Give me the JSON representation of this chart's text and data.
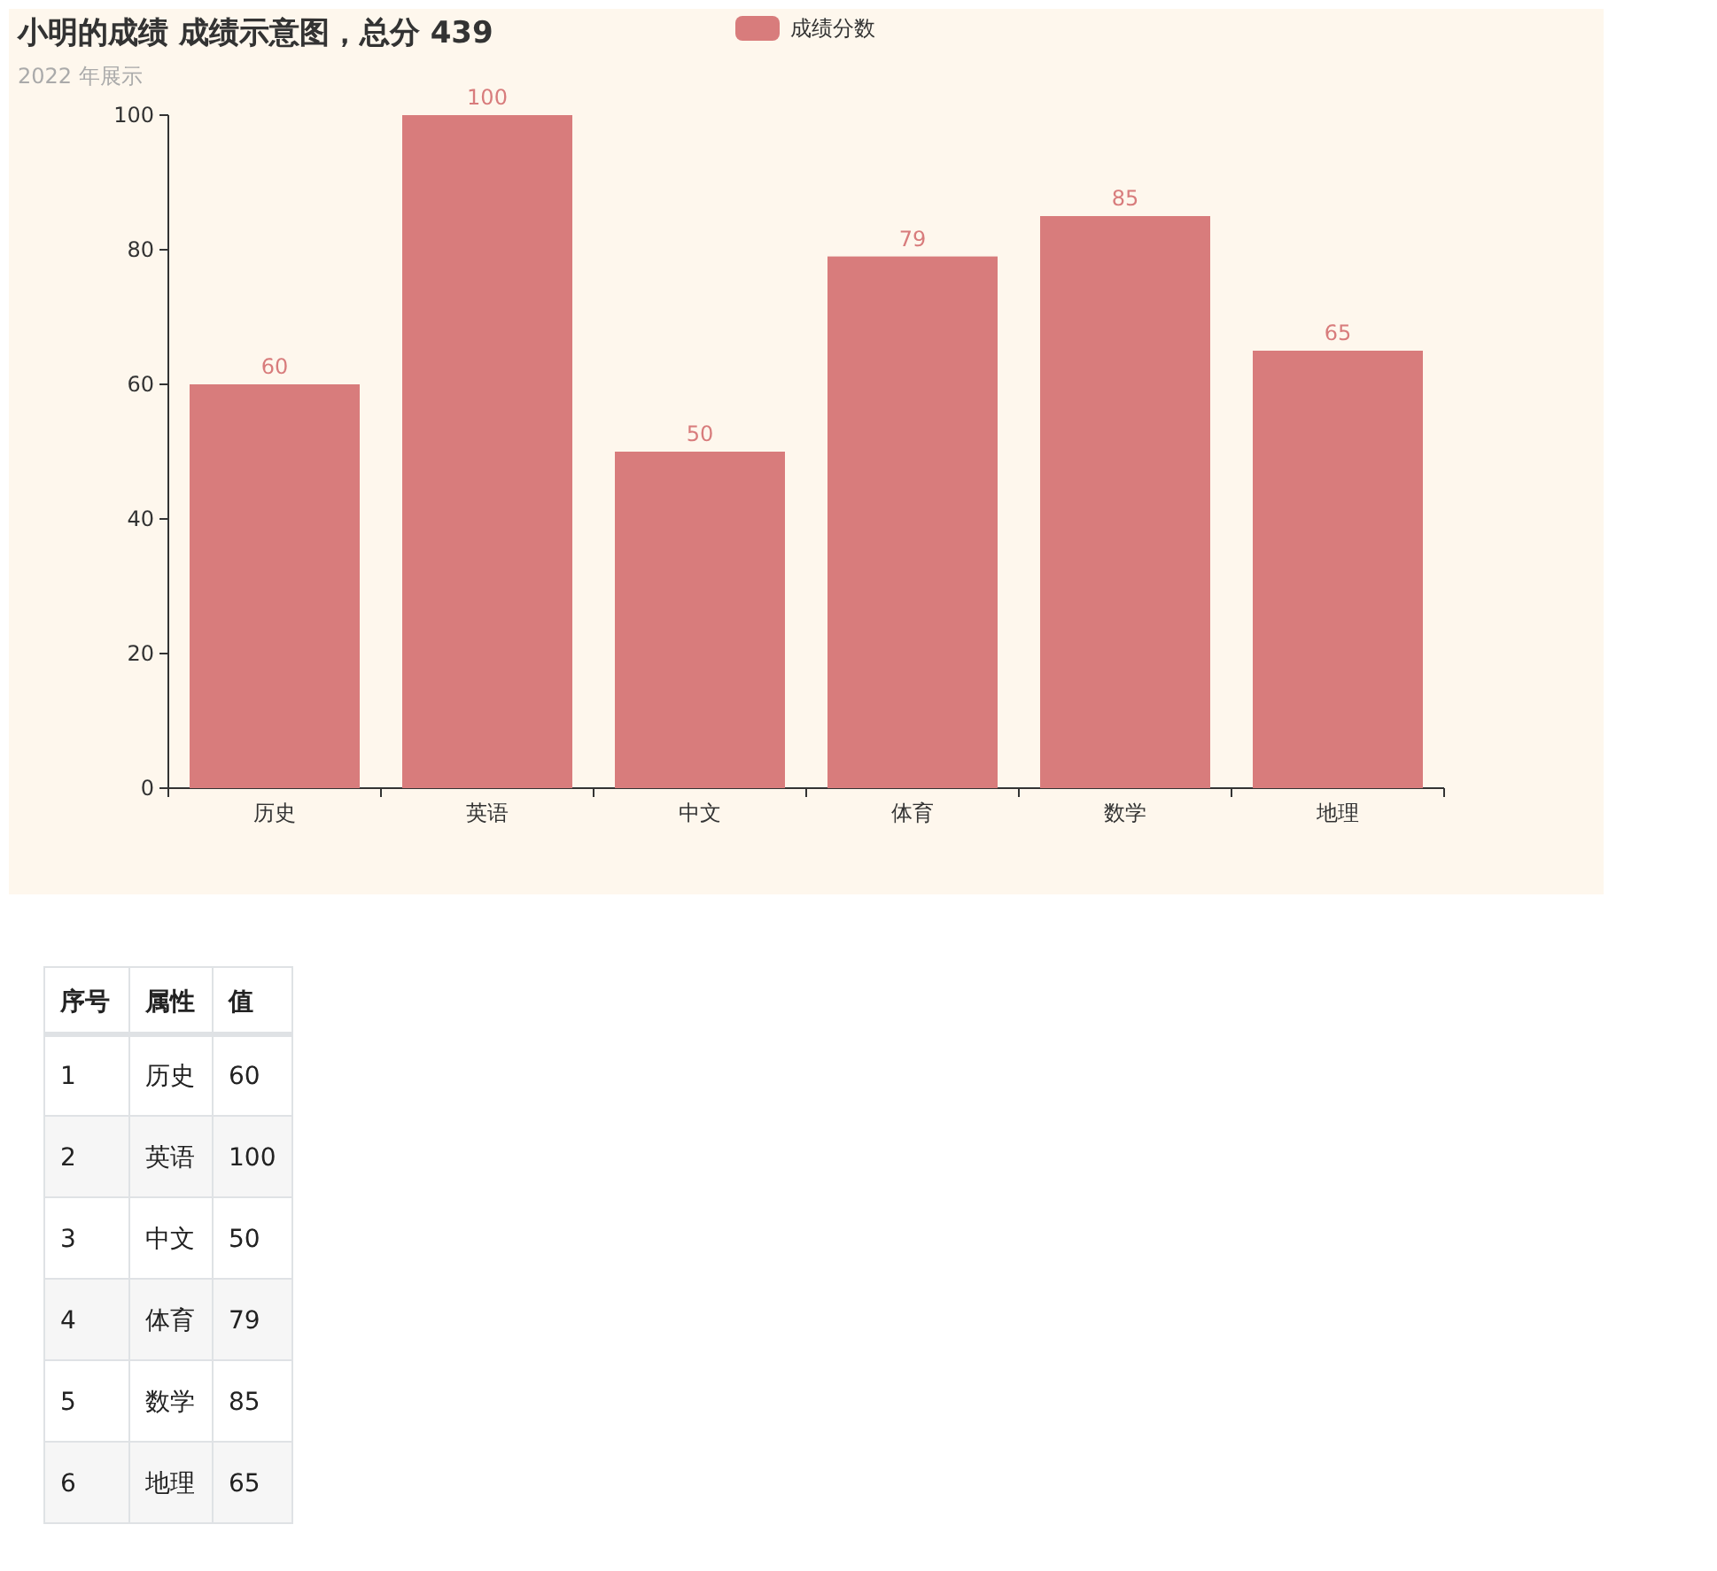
{
  "chart_data": {
    "type": "bar",
    "title": "小明的成绩 成绩示意图，总分 439",
    "subtitle": "2022 年展示",
    "categories": [
      "历史",
      "英语",
      "中文",
      "体育",
      "数学",
      "地理"
    ],
    "series": [
      {
        "name": "成绩分数",
        "color": "#d87c7c",
        "values": [
          60,
          100,
          50,
          79,
          85,
          65
        ]
      }
    ],
    "ylim": [
      0,
      100
    ],
    "yticks": [
      0,
      20,
      40,
      60,
      80,
      100
    ],
    "grid": false,
    "legend": "top",
    "data_labels": true,
    "annotations": [
      "序号",
      "属性",
      "值",
      "1",
      "历史",
      "60",
      "2",
      "英语",
      "100",
      "3",
      "中文",
      "50",
      "4",
      "体育",
      "79",
      "5",
      "数学",
      "85",
      "6",
      "地理",
      "65"
    ]
  }
}
